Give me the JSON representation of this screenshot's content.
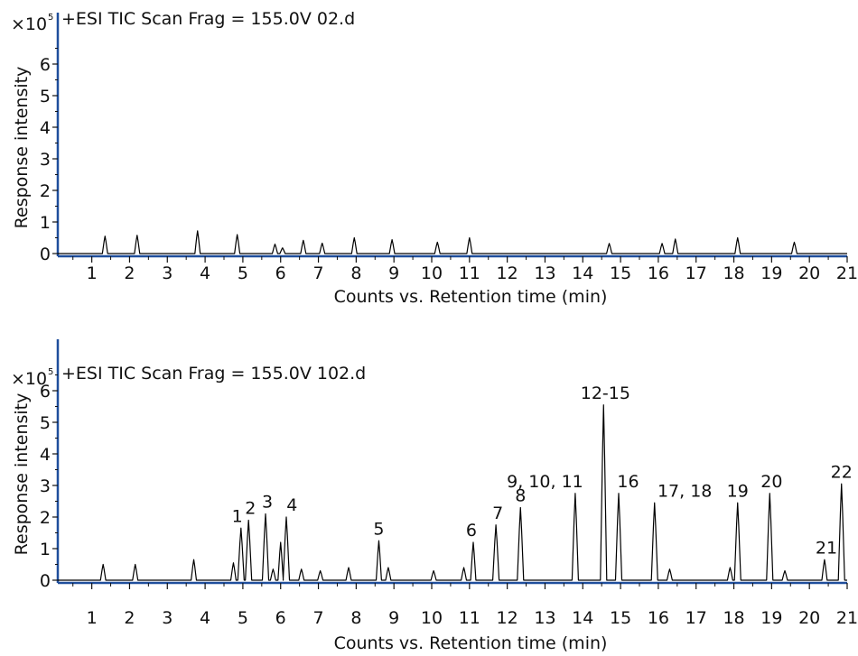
{
  "chart_data": [
    {
      "type": "line",
      "title": "+ESI TIC Scan Frag = 155.0V 02.d",
      "scale_prefix": "×10",
      "scale_exponent": "5",
      "xlabel": "Counts vs. Retention time (min)",
      "ylabel": "Response intensity",
      "xlim": [
        0.1,
        21
      ],
      "ylim": [
        0,
        7
      ],
      "x_ticks": [
        "1",
        "2",
        "3",
        "4",
        "5",
        "6",
        "7",
        "8",
        "9",
        "10",
        "11",
        "12",
        "13",
        "14",
        "15",
        "16",
        "17",
        "18",
        "19",
        "20",
        "21"
      ],
      "y_ticks": [
        "0",
        "1",
        "2",
        "3",
        "4",
        "5",
        "6"
      ],
      "colors": {
        "trace": "#000000",
        "axis_left": "#1f4e9c",
        "axis_bottom": "#1f4e9c"
      },
      "peaks": [
        {
          "rt": 1.35,
          "h": 0.55
        },
        {
          "rt": 2.2,
          "h": 0.58
        },
        {
          "rt": 3.8,
          "h": 0.72
        },
        {
          "rt": 4.85,
          "h": 0.6
        },
        {
          "rt": 5.85,
          "h": 0.3
        },
        {
          "rt": 6.05,
          "h": 0.18
        },
        {
          "rt": 6.6,
          "h": 0.42
        },
        {
          "rt": 7.1,
          "h": 0.33
        },
        {
          "rt": 7.95,
          "h": 0.5
        },
        {
          "rt": 8.95,
          "h": 0.44
        },
        {
          "rt": 10.15,
          "h": 0.36
        },
        {
          "rt": 11.0,
          "h": 0.5
        },
        {
          "rt": 14.7,
          "h": 0.32
        },
        {
          "rt": 16.1,
          "h": 0.32
        },
        {
          "rt": 16.45,
          "h": 0.46
        },
        {
          "rt": 18.1,
          "h": 0.5
        },
        {
          "rt": 19.6,
          "h": 0.36
        }
      ],
      "annotations": []
    },
    {
      "type": "line",
      "title": "+ESI TIC Scan Frag = 155.0V 102.d",
      "scale_prefix": "×10",
      "scale_exponent": "5",
      "xlabel": "Counts vs. Retention time (min)",
      "ylabel": "Response intensity",
      "xlim": [
        0.1,
        21
      ],
      "ylim": [
        0,
        7
      ],
      "x_ticks": [
        "1",
        "2",
        "3",
        "4",
        "5",
        "6",
        "7",
        "8",
        "9",
        "10",
        "11",
        "12",
        "13",
        "14",
        "15",
        "16",
        "17",
        "18",
        "19",
        "20",
        "21"
      ],
      "y_ticks": [
        "0",
        "1",
        "2",
        "3",
        "4",
        "5",
        "6"
      ],
      "colors": {
        "trace": "#000000",
        "axis_left": "#1f4e9c",
        "axis_bottom": "#1f4e9c"
      },
      "peaks": [
        {
          "rt": 1.3,
          "h": 0.5
        },
        {
          "rt": 2.15,
          "h": 0.5
        },
        {
          "rt": 3.7,
          "h": 0.65
        },
        {
          "rt": 4.75,
          "h": 0.55
        },
        {
          "rt": 4.95,
          "h": 1.65
        },
        {
          "rt": 5.15,
          "h": 1.9
        },
        {
          "rt": 5.6,
          "h": 2.1
        },
        {
          "rt": 5.8,
          "h": 0.35
        },
        {
          "rt": 6.0,
          "h": 1.2
        },
        {
          "rt": 6.15,
          "h": 2.0
        },
        {
          "rt": 6.55,
          "h": 0.35
        },
        {
          "rt": 7.05,
          "h": 0.3
        },
        {
          "rt": 7.8,
          "h": 0.4
        },
        {
          "rt": 8.6,
          "h": 1.25
        },
        {
          "rt": 8.85,
          "h": 0.4
        },
        {
          "rt": 10.05,
          "h": 0.3
        },
        {
          "rt": 10.85,
          "h": 0.4
        },
        {
          "rt": 11.1,
          "h": 1.2
        },
        {
          "rt": 11.7,
          "h": 1.75
        },
        {
          "rt": 12.35,
          "h": 2.3
        },
        {
          "rt": 13.8,
          "h": 2.75
        },
        {
          "rt": 14.55,
          "h": 5.55
        },
        {
          "rt": 14.95,
          "h": 2.75
        },
        {
          "rt": 15.9,
          "h": 2.45
        },
        {
          "rt": 16.3,
          "h": 0.35
        },
        {
          "rt": 17.9,
          "h": 0.4
        },
        {
          "rt": 18.1,
          "h": 2.45
        },
        {
          "rt": 18.95,
          "h": 2.75
        },
        {
          "rt": 19.35,
          "h": 0.3
        },
        {
          "rt": 20.4,
          "h": 0.65
        },
        {
          "rt": 20.85,
          "h": 3.05
        }
      ],
      "annotations": [
        {
          "text": "1",
          "x": 4.85,
          "y": 1.85
        },
        {
          "text": "2",
          "x": 5.2,
          "y": 2.1
        },
        {
          "text": "3",
          "x": 5.65,
          "y": 2.3
        },
        {
          "text": "4",
          "x": 6.3,
          "y": 2.2
        },
        {
          "text": "5",
          "x": 8.6,
          "y": 1.45
        },
        {
          "text": "6",
          "x": 11.05,
          "y": 1.4
        },
        {
          "text": "7",
          "x": 11.75,
          "y": 1.95
        },
        {
          "text": "8",
          "x": 12.35,
          "y": 2.5
        },
        {
          "text": "9, 10, 11",
          "x": 13.0,
          "y": 2.95
        },
        {
          "text": "12-15",
          "x": 14.6,
          "y": 5.75
        },
        {
          "text": "16",
          "x": 15.2,
          "y": 2.95
        },
        {
          "text": "17, 18",
          "x": 16.7,
          "y": 2.65
        },
        {
          "text": "19",
          "x": 18.1,
          "y": 2.65
        },
        {
          "text": "20",
          "x": 19.0,
          "y": 2.95
        },
        {
          "text": "21",
          "x": 20.45,
          "y": 0.85
        },
        {
          "text": "22",
          "x": 20.85,
          "y": 3.25
        }
      ]
    }
  ]
}
